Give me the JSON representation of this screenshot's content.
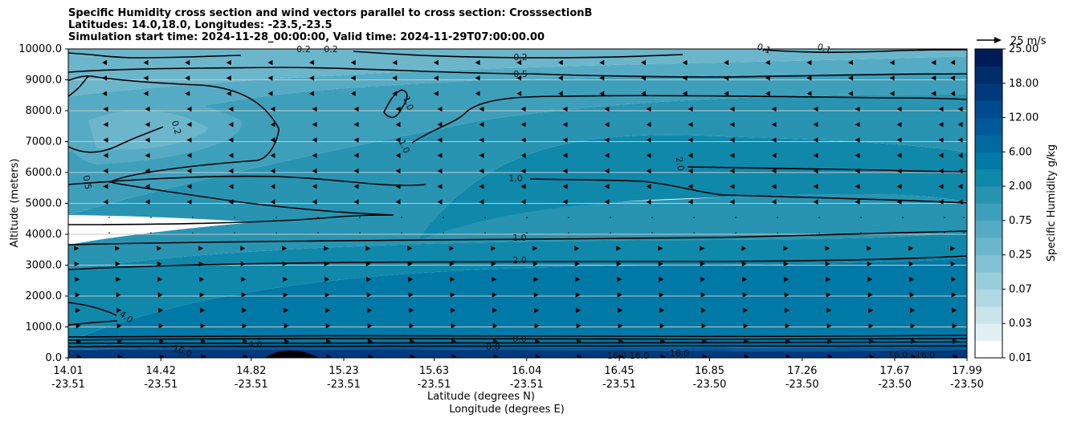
{
  "title_lines": [
    "Specific Humidity cross section and wind vectors parallel to cross section: CrosssectionB",
    "Latitudes: 14.0,18.0, Longitudes: -23.5,-23.5",
    "Simulation start time: 2024-11-28_00:00:00, Valid time: 2024-11-29T07:00:00.00"
  ],
  "chart_data": {
    "type": "heatmap",
    "title": "Specific Humidity cross section and wind vectors parallel to cross section: CrosssectionB",
    "ylabel": "Altitude (meters)",
    "xlabel_lines": [
      "Latitude (degrees N)",
      "Longitude (degrees E)"
    ],
    "ylim": [
      0,
      10000
    ],
    "xlim": [
      14.01,
      17.99
    ],
    "y_ticks": [
      "0.0",
      "1000.0",
      "2000.0",
      "3000.0",
      "4000.0",
      "5000.0",
      "6000.0",
      "7000.0",
      "8000.0",
      "9000.0",
      "10000.0"
    ],
    "x_ticks": [
      {
        "lat": "14.01",
        "lon": "-23.51"
      },
      {
        "lat": "14.42",
        "lon": "-23.51"
      },
      {
        "lat": "14.82",
        "lon": "-23.51"
      },
      {
        "lat": "15.23",
        "lon": "-23.51"
      },
      {
        "lat": "15.63",
        "lon": "-23.51"
      },
      {
        "lat": "16.04",
        "lon": "-23.51"
      },
      {
        "lat": "16.45",
        "lon": "-23.51"
      },
      {
        "lat": "16.85",
        "lon": "-23.50"
      },
      {
        "lat": "17.26",
        "lon": "-23.50"
      },
      {
        "lat": "17.67",
        "lon": "-23.50"
      },
      {
        "lat": "17.99",
        "lon": "-23.50"
      }
    ],
    "grid": "horizontal",
    "colorbar": {
      "label": "Specific Humidity g/kg",
      "tick_labels": [
        "0.01",
        "0.03",
        "0.07",
        "0.25",
        "0.75",
        "2.00",
        "6.00",
        "12.00",
        "18.00",
        "25.00"
      ],
      "levels": [
        0.01,
        0.02,
        0.03,
        0.05,
        0.07,
        0.1,
        0.25,
        0.5,
        0.75,
        1.0,
        2.0,
        4.0,
        6.0,
        8.0,
        12.0,
        16.0,
        18.0,
        20.0,
        25.0
      ],
      "colors": [
        "#ffffff",
        "#e2f0f3",
        "#c9e4eb",
        "#b1d8e3",
        "#9acddb",
        "#83c2d3",
        "#6cb6cb",
        "#55abc3",
        "#3e9fbb",
        "#2894b2",
        "#1088aa",
        "#0079a6",
        "#0069a0",
        "#00599a",
        "#004a8e",
        "#003a7c",
        "#002c6a",
        "#001c58"
      ]
    },
    "wind_reference": {
      "label": "25 m/s",
      "speed_ms": 25
    },
    "contour_labels": [
      "0.2",
      "0.2",
      "0.1",
      "0.1",
      "0.2",
      "0.5",
      "1.0",
      "1.0",
      "0.2",
      "0.5",
      "1.0",
      "2.0",
      "1.0",
      "2.0",
      "4.0",
      "8.0",
      "4.0",
      "8.0",
      "16.0",
      "16.0",
      "16.0",
      "16.0",
      "16.0",
      "16.0"
    ],
    "humidity_bands_by_altitude": [
      {
        "altitude_m": 0,
        "value_gkg": 18.0
      },
      {
        "altitude_m": 250,
        "value_gkg": 8.0
      },
      {
        "altitude_m": 600,
        "value_gkg": 4.0
      },
      {
        "altitude_m": 2000,
        "value_gkg": 3.0
      },
      {
        "altitude_m": 3000,
        "value_gkg": 2.0
      },
      {
        "altitude_m": 4000,
        "value_gkg": 1.0
      },
      {
        "altitude_m": 5500,
        "value_gkg": 1.5
      },
      {
        "altitude_m": 7000,
        "value_gkg": 0.75
      },
      {
        "altitude_m": 9000,
        "value_gkg": 0.25
      },
      {
        "altitude_m": 10000,
        "value_gkg": 0.1
      }
    ]
  }
}
